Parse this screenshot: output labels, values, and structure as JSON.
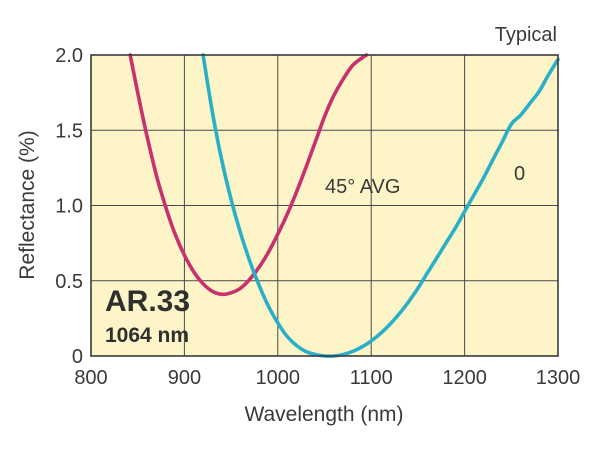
{
  "chart_data": {
    "type": "line",
    "title": "Typical",
    "product": "AR.33",
    "product_wavelength": "1064 nm",
    "xlabel": "Wavelength (nm)",
    "ylabel": "Reflectance (%)",
    "xlim": [
      800,
      1300
    ],
    "ylim": [
      0,
      2.0
    ],
    "x_ticks": [
      800,
      900,
      1000,
      1100,
      1200,
      1300
    ],
    "x_tick_labels": [
      "800",
      "900",
      "1000",
      "1100",
      "1200",
      "1300"
    ],
    "y_ticks": [
      0,
      0.5,
      1.0,
      1.5,
      2.0
    ],
    "y_tick_labels": [
      "0",
      "0.5",
      "1.0",
      "1.5",
      "2.0"
    ],
    "grid": true,
    "plot_background": "#fdf5c8",
    "series": [
      {
        "name": "45° AVG",
        "color": "#c8306e",
        "x": [
          842,
          850,
          860,
          870,
          880,
          890,
          900,
          910,
          920,
          930,
          940,
          950,
          960,
          970,
          980,
          990,
          1000,
          1010,
          1020,
          1030,
          1040,
          1050,
          1060,
          1070,
          1080,
          1090,
          1095
        ],
        "y": [
          2.0,
          1.75,
          1.46,
          1.2,
          0.99,
          0.81,
          0.67,
          0.56,
          0.48,
          0.43,
          0.41,
          0.42,
          0.45,
          0.51,
          0.59,
          0.69,
          0.81,
          0.94,
          1.09,
          1.25,
          1.42,
          1.59,
          1.73,
          1.84,
          1.93,
          1.98,
          2.0
        ]
      },
      {
        "name": "0",
        "color": "#2aafc8",
        "x": [
          920,
          930,
          940,
          950,
          960,
          970,
          980,
          990,
          1000,
          1010,
          1020,
          1030,
          1040,
          1050,
          1060,
          1070,
          1080,
          1090,
          1100,
          1110,
          1120,
          1130,
          1140,
          1150,
          1160,
          1170,
          1180,
          1190,
          1200,
          1210,
          1220,
          1230,
          1240,
          1250,
          1260,
          1270,
          1280,
          1290,
          1300
        ],
        "y": [
          2.0,
          1.62,
          1.3,
          1.04,
          0.82,
          0.63,
          0.47,
          0.33,
          0.22,
          0.13,
          0.07,
          0.03,
          0.01,
          0.0,
          0.0,
          0.01,
          0.03,
          0.06,
          0.1,
          0.15,
          0.21,
          0.28,
          0.36,
          0.45,
          0.55,
          0.65,
          0.75,
          0.85,
          0.96,
          1.07,
          1.18,
          1.3,
          1.42,
          1.54,
          1.6,
          1.68,
          1.76,
          1.87,
          1.97
        ]
      }
    ]
  }
}
